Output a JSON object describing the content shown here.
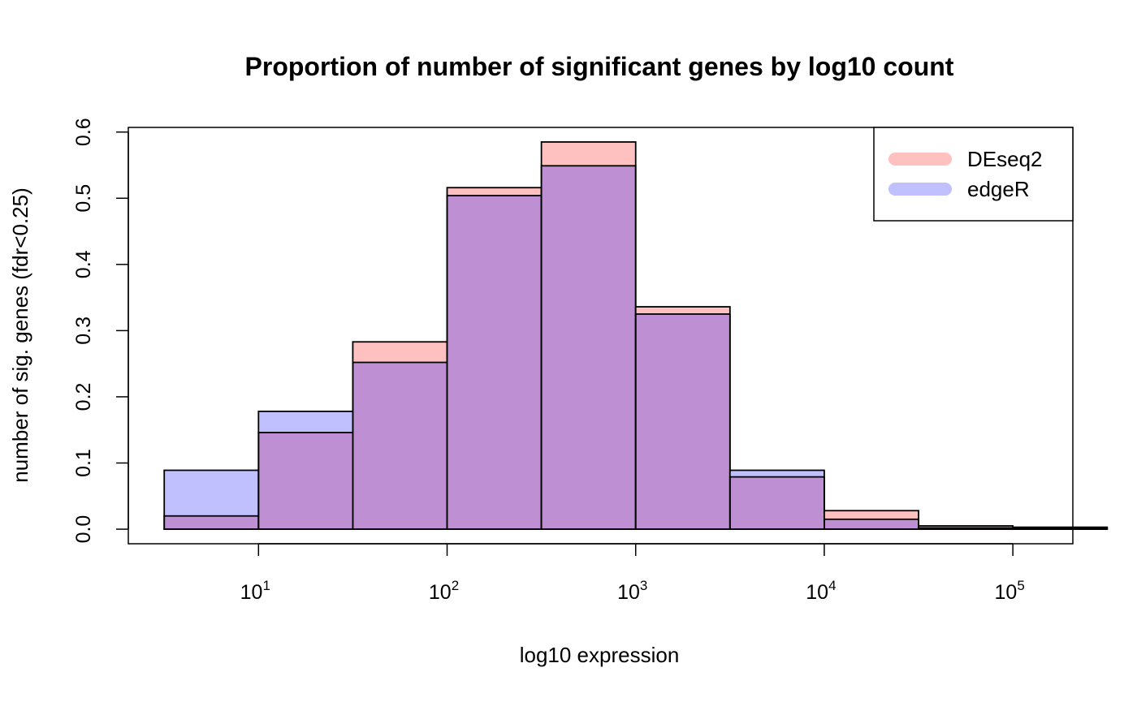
{
  "chart_data": {
    "type": "bar",
    "title": "Proportion of number of significant genes by log10 count",
    "xlabel": "log10 expression",
    "ylabel": "number of sig. genes (fdr<0.25)",
    "x_scale": "log10",
    "bin_edges": [
      3.1623,
      10,
      31.623,
      100,
      316.23,
      1000,
      3162.3,
      10000,
      31623,
      100000,
      316230
    ],
    "xlim": [
      2.04,
      208000
    ],
    "ylim": [
      -0.022,
      0.607
    ],
    "x_ticks": [
      {
        "base": "10",
        "exp": "1",
        "value": 10
      },
      {
        "base": "10",
        "exp": "2",
        "value": 100
      },
      {
        "base": "10",
        "exp": "3",
        "value": 1000
      },
      {
        "base": "10",
        "exp": "4",
        "value": 10000
      },
      {
        "base": "10",
        "exp": "5",
        "value": 100000
      }
    ],
    "y_ticks": [
      "0.0",
      "0.1",
      "0.2",
      "0.3",
      "0.4",
      "0.5",
      "0.6"
    ],
    "series": [
      {
        "name": "DEseq2",
        "color": "#FFC0C0",
        "values": [
          0.02,
          0.146,
          0.283,
          0.516,
          0.585,
          0.336,
          0.079,
          0.028,
          0.005,
          0.002
        ]
      },
      {
        "name": "edgeR",
        "color": "#C0C0FF",
        "values": [
          0.089,
          0.178,
          0.252,
          0.504,
          0.549,
          0.325,
          0.089,
          0.015,
          0.002,
          0.003
        ]
      }
    ],
    "overlap_color": "#BE90D3",
    "legend": {
      "position": "top-right"
    },
    "grid": false
  }
}
